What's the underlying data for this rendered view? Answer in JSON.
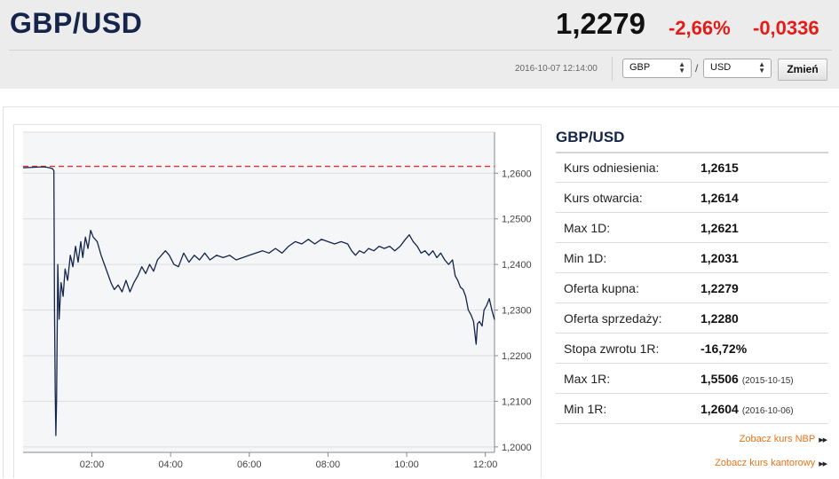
{
  "header": {
    "pair": "GBP/USD",
    "price": "1,2279",
    "change_pct": "-2,66%",
    "change_abs": "-0,0336",
    "timestamp": "2016-10-07 12:14:00",
    "from_currency": "GBP",
    "to_currency": "USD",
    "separator": "/",
    "change_button": "Zmień"
  },
  "colors": {
    "brand": "#14244a",
    "negative": "#e41b17",
    "link": "#e8731b",
    "line": "#14244a",
    "reference_line": "#e03030",
    "plot_fill": "#f4f6f8"
  },
  "chart_data": {
    "type": "line",
    "title": "",
    "xlabel": "",
    "ylabel": "",
    "xlim": [
      "00:15",
      "12:14"
    ],
    "ylim": [
      1.1988,
      1.269
    ],
    "x_ticks": [
      "02:00",
      "04:00",
      "06:00",
      "08:00",
      "10:00",
      "12:00"
    ],
    "y_ticks": [
      "1,2600",
      "1,2500",
      "1,2400",
      "1,2300",
      "1,2200",
      "1,2100",
      "1,2000"
    ],
    "y_tick_values": [
      1.26,
      1.25,
      1.24,
      1.23,
      1.22,
      1.21,
      1.2
    ],
    "reference_value": 1.2615,
    "grid": true,
    "series": [
      {
        "values": [
          [
            "00:15",
            1.2612
          ],
          [
            "00:30",
            1.2613
          ],
          [
            "00:45",
            1.2614
          ],
          [
            "00:52",
            1.2613
          ],
          [
            "01:00",
            1.261
          ],
          [
            "01:02",
            1.2605
          ],
          [
            "01:03",
            1.23
          ],
          [
            "01:04",
            1.212
          ],
          [
            "01:05",
            1.2025
          ],
          [
            "01:06",
            1.21
          ],
          [
            "01:08",
            1.24
          ],
          [
            "01:10",
            1.228
          ],
          [
            "01:13",
            1.236
          ],
          [
            "01:16",
            1.233
          ],
          [
            "01:19",
            1.239
          ],
          [
            "01:23",
            1.2365
          ],
          [
            "01:27",
            1.242
          ],
          [
            "01:31",
            1.2395
          ],
          [
            "01:35",
            1.244
          ],
          [
            "01:39",
            1.2405
          ],
          [
            "01:43",
            1.245
          ],
          [
            "01:46",
            1.2415
          ],
          [
            "01:50",
            1.246
          ],
          [
            "01:54",
            1.2435
          ],
          [
            "01:58",
            1.2475
          ],
          [
            "02:02",
            1.246
          ],
          [
            "02:08",
            1.245
          ],
          [
            "02:14",
            1.242
          ],
          [
            "02:19",
            1.24
          ],
          [
            "02:24",
            1.238
          ],
          [
            "02:29",
            1.236
          ],
          [
            "02:34",
            1.2345
          ],
          [
            "02:40",
            1.2355
          ],
          [
            "02:46",
            1.234
          ],
          [
            "02:52",
            1.2365
          ],
          [
            "02:58",
            1.234
          ],
          [
            "03:04",
            1.236
          ],
          [
            "03:10",
            1.2375
          ],
          [
            "03:16",
            1.2395
          ],
          [
            "03:22",
            1.238
          ],
          [
            "03:28",
            1.24
          ],
          [
            "03:34",
            1.2385
          ],
          [
            "03:40",
            1.241
          ],
          [
            "03:46",
            1.242
          ],
          [
            "03:52",
            1.243
          ],
          [
            "03:58",
            1.242
          ],
          [
            "04:05",
            1.24
          ],
          [
            "04:12",
            1.2395
          ],
          [
            "04:20",
            1.2425
          ],
          [
            "04:28",
            1.2405
          ],
          [
            "04:36",
            1.242
          ],
          [
            "04:44",
            1.241
          ],
          [
            "04:52",
            1.2425
          ],
          [
            "05:00",
            1.241
          ],
          [
            "05:10",
            1.242
          ],
          [
            "05:20",
            1.2415
          ],
          [
            "05:30",
            1.242
          ],
          [
            "05:40",
            1.241
          ],
          [
            "05:50",
            1.2415
          ],
          [
            "06:00",
            1.242
          ],
          [
            "06:10",
            1.2425
          ],
          [
            "06:20",
            1.243
          ],
          [
            "06:30",
            1.2425
          ],
          [
            "06:40",
            1.2435
          ],
          [
            "06:50",
            1.2425
          ],
          [
            "07:00",
            1.244
          ],
          [
            "07:10",
            1.245
          ],
          [
            "07:20",
            1.2445
          ],
          [
            "07:30",
            1.2455
          ],
          [
            "07:40",
            1.2445
          ],
          [
            "07:50",
            1.2455
          ],
          [
            "08:00",
            1.245
          ],
          [
            "08:10",
            1.2445
          ],
          [
            "08:20",
            1.245
          ],
          [
            "08:30",
            1.2445
          ],
          [
            "08:36",
            1.243
          ],
          [
            "08:42",
            1.242
          ],
          [
            "08:48",
            1.243
          ],
          [
            "08:55",
            1.2425
          ],
          [
            "09:02",
            1.2435
          ],
          [
            "09:10",
            1.243
          ],
          [
            "09:18",
            1.244
          ],
          [
            "09:26",
            1.2435
          ],
          [
            "09:34",
            1.244
          ],
          [
            "09:42",
            1.243
          ],
          [
            "09:50",
            1.244
          ],
          [
            "09:58",
            1.2455
          ],
          [
            "10:04",
            1.2465
          ],
          [
            "10:10",
            1.245
          ],
          [
            "10:16",
            1.244
          ],
          [
            "10:22",
            1.2425
          ],
          [
            "10:28",
            1.243
          ],
          [
            "10:34",
            1.242
          ],
          [
            "10:40",
            1.243
          ],
          [
            "10:46",
            1.2415
          ],
          [
            "10:52",
            1.2425
          ],
          [
            "10:58",
            1.241
          ],
          [
            "11:04",
            1.24
          ],
          [
            "11:10",
            1.241
          ],
          [
            "11:14",
            1.2375
          ],
          [
            "11:18",
            1.2365
          ],
          [
            "11:22",
            1.235
          ],
          [
            "11:26",
            1.2345
          ],
          [
            "11:30",
            1.233
          ],
          [
            "11:34",
            1.23
          ],
          [
            "11:38",
            1.229
          ],
          [
            "11:42",
            1.2275
          ],
          [
            "11:46",
            1.2225
          ],
          [
            "11:48",
            1.227
          ],
          [
            "11:51",
            1.2275
          ],
          [
            "11:55",
            1.2265
          ],
          [
            "11:58",
            1.23
          ],
          [
            "12:02",
            1.231
          ],
          [
            "12:06",
            1.2325
          ],
          [
            "12:10",
            1.23
          ],
          [
            "12:14",
            1.2279
          ]
        ]
      }
    ]
  },
  "stats": {
    "title": "GBP/USD",
    "rows": [
      {
        "label": "Kurs odniesienia:",
        "value": "1,2615",
        "date": ""
      },
      {
        "label": "Kurs otwarcia:",
        "value": "1,2614",
        "date": ""
      },
      {
        "label": "Max 1D:",
        "value": "1,2621",
        "date": ""
      },
      {
        "label": "Min 1D:",
        "value": "1,2031",
        "date": ""
      },
      {
        "label": "Oferta kupna:",
        "value": "1,2279",
        "date": ""
      },
      {
        "label": "Oferta sprzedaży:",
        "value": "1,2280",
        "date": ""
      },
      {
        "label": "Stopa zwrotu 1R:",
        "value": "-16,72%",
        "date": ""
      },
      {
        "label": "Max 1R:",
        "value": "1,5506",
        "date": "(2015-10-15)"
      },
      {
        "label": "Min 1R:",
        "value": "1,2604",
        "date": "(2016-10-06)"
      }
    ]
  },
  "links": {
    "nbp": "Zobacz kurs NBP",
    "kantor": "Zobacz kurs kantorowy"
  }
}
